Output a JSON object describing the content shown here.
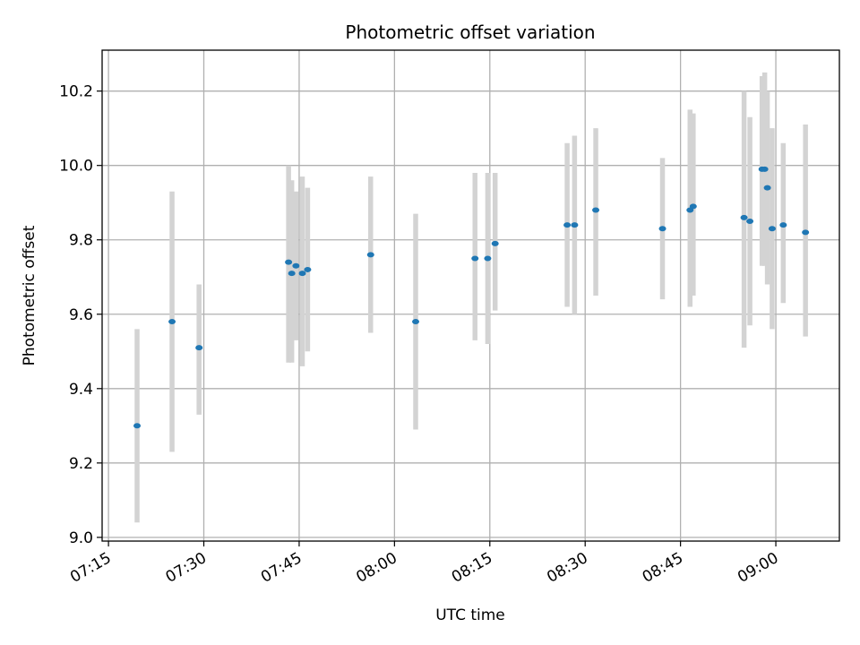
{
  "chart_data": {
    "type": "scatter",
    "title": "Photometric offset variation",
    "xlabel": "UTC time",
    "ylabel": "Photometric offset",
    "x_ticks": [
      "07:15",
      "07:30",
      "07:45",
      "08:00",
      "08:15",
      "08:30",
      "08:45",
      "09:00"
    ],
    "x_tick_values": [
      "07:15",
      "07:30",
      "07:45",
      "08:00",
      "08:15",
      "08:30",
      "08:45",
      "09:00"
    ],
    "y_ticks": [
      "9.0",
      "9.2",
      "9.4",
      "9.6",
      "9.8",
      "10.0",
      "10.2"
    ],
    "y_tick_values": [
      9.0,
      9.2,
      9.4,
      9.6,
      9.8,
      10.0,
      10.2
    ],
    "xlim": [
      "07:14",
      "09:10"
    ],
    "ylim": [
      8.99,
      10.31
    ],
    "grid": true,
    "colors": {
      "marker": "#1f77b4",
      "errorbar": "#d3d3d3",
      "grid": "#b0b0b0"
    },
    "points": [
      {
        "time": "07:19:30",
        "y": 9.3,
        "lo": 9.04,
        "hi": 9.56
      },
      {
        "time": "07:25:00",
        "y": 9.58,
        "lo": 9.23,
        "hi": 9.93
      },
      {
        "time": "07:29:15",
        "y": 9.51,
        "lo": 9.33,
        "hi": 9.68
      },
      {
        "time": "07:43:20",
        "y": 9.74,
        "lo": 9.47,
        "hi": 10.0
      },
      {
        "time": "07:43:50",
        "y": 9.71,
        "lo": 9.47,
        "hi": 9.96
      },
      {
        "time": "07:44:30",
        "y": 9.73,
        "lo": 9.53,
        "hi": 9.93
      },
      {
        "time": "07:45:30",
        "y": 9.71,
        "lo": 9.46,
        "hi": 9.97
      },
      {
        "time": "07:46:20",
        "y": 9.72,
        "lo": 9.5,
        "hi": 9.94
      },
      {
        "time": "07:56:15",
        "y": 9.76,
        "lo": 9.55,
        "hi": 9.97
      },
      {
        "time": "08:03:20",
        "y": 9.58,
        "lo": 9.29,
        "hi": 9.87
      },
      {
        "time": "08:12:40",
        "y": 9.75,
        "lo": 9.53,
        "hi": 9.98
      },
      {
        "time": "08:14:40",
        "y": 9.75,
        "lo": 9.52,
        "hi": 9.98
      },
      {
        "time": "08:15:50",
        "y": 9.79,
        "lo": 9.61,
        "hi": 9.98
      },
      {
        "time": "08:27:10",
        "y": 9.84,
        "lo": 9.62,
        "hi": 10.06
      },
      {
        "time": "08:28:20",
        "y": 9.84,
        "lo": 9.6,
        "hi": 10.08
      },
      {
        "time": "08:31:40",
        "y": 9.88,
        "lo": 9.65,
        "hi": 10.1
      },
      {
        "time": "08:42:10",
        "y": 9.83,
        "lo": 9.64,
        "hi": 10.02
      },
      {
        "time": "08:46:30",
        "y": 9.88,
        "lo": 9.62,
        "hi": 10.15
      },
      {
        "time": "08:47:00",
        "y": 9.89,
        "lo": 9.65,
        "hi": 10.14
      },
      {
        "time": "08:55:00",
        "y": 9.86,
        "lo": 9.51,
        "hi": 10.2
      },
      {
        "time": "08:55:55",
        "y": 9.85,
        "lo": 9.57,
        "hi": 10.13
      },
      {
        "time": "08:57:50",
        "y": 9.99,
        "lo": 9.73,
        "hi": 10.24
      },
      {
        "time": "08:58:15",
        "y": 9.99,
        "lo": 9.73,
        "hi": 10.25
      },
      {
        "time": "08:58:40",
        "y": 9.94,
        "lo": 9.68,
        "hi": 10.2
      },
      {
        "time": "08:59:25",
        "y": 9.83,
        "lo": 9.56,
        "hi": 10.1
      },
      {
        "time": "09:01:10",
        "y": 9.84,
        "lo": 9.63,
        "hi": 10.06
      },
      {
        "time": "09:04:40",
        "y": 9.82,
        "lo": 9.54,
        "hi": 10.11
      }
    ]
  }
}
